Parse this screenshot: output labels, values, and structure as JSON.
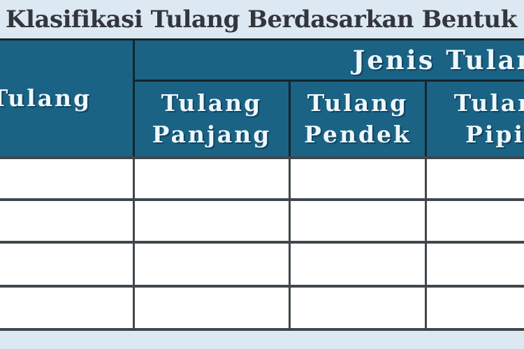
{
  "title": "Klasifikasi Tulang Berdasarkan Bentuk dan",
  "table": {
    "corner_header": "Tulang",
    "group_header": "Jenis Tulang",
    "sub_headers": [
      "Tulang Panjang",
      "Tulang Pendek",
      "Tulang Pipih"
    ],
    "body_row_count": 4,
    "body_cells_empty": true
  },
  "colors": {
    "background": "#dce9f2",
    "header_teal": "#1b6385",
    "header_text": "#eef7fd",
    "header_border": "#15242d",
    "body_border": "#40474c",
    "title_text": "#34363d",
    "body_cell": "#ffffff"
  }
}
